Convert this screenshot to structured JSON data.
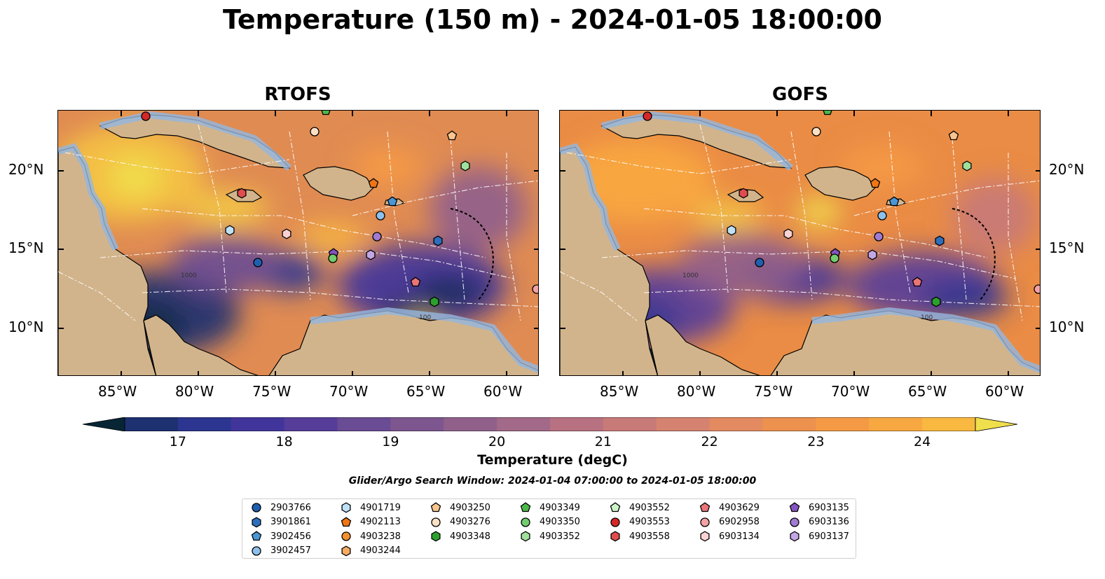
{
  "title": "Temperature (150 m) - 2024-01-05 18:00:00",
  "panels": [
    {
      "title": "RTOFS",
      "colors": "rtofs"
    },
    {
      "title": "GOFS",
      "colors": "gofs"
    }
  ],
  "axes": {
    "lon_ticks": [
      "85°W",
      "80°W",
      "75°W",
      "70°W",
      "65°W",
      "60°W"
    ],
    "lat_ticks": [
      "20°N",
      "15°N",
      "10°N"
    ]
  },
  "colorbar": {
    "label": "Temperature (degC)",
    "ticks": [
      "17",
      "18",
      "19",
      "20",
      "21",
      "22",
      "23",
      "24"
    ],
    "min": 16.5,
    "max": 24.5,
    "colors": [
      "#072535",
      "#0f2b55",
      "#1d3070",
      "#2c3690",
      "#41359c",
      "#563d9a",
      "#6a4c94",
      "#7d568f",
      "#90608b",
      "#a26a88",
      "#b87180",
      "#c77a78",
      "#d58370",
      "#e48a60",
      "#ed914e",
      "#f59a44",
      "#f8a840",
      "#f9b83f",
      "#f4cc44",
      "#f0df4c"
    ]
  },
  "search_window": "Glider/Argo Search Window: 2024-01-04 07:00:00 to 2024-01-05 18:00:00",
  "legend": {
    "columns": [
      [
        {
          "id": "2903766",
          "shape": "circle",
          "color": "#1f5fb0"
        },
        {
          "id": "3901861",
          "shape": "hexagon",
          "color": "#2c6fbd"
        },
        {
          "id": "3902456",
          "shape": "pentagon",
          "color": "#4a96d6"
        },
        {
          "id": "3902457",
          "shape": "circle",
          "color": "#8ec0ec"
        }
      ],
      [
        {
          "id": "4901719",
          "shape": "hexagon",
          "color": "#bfe1f7"
        },
        {
          "id": "4902113",
          "shape": "pentagon",
          "color": "#f07614"
        },
        {
          "id": "4903238",
          "shape": "circle",
          "color": "#f39030"
        },
        {
          "id": "4903244",
          "shape": "hexagon",
          "color": "#f6ab62"
        }
      ],
      [
        {
          "id": "4903250",
          "shape": "pentagon",
          "color": "#f9c48e"
        },
        {
          "id": "4903276",
          "shape": "circle",
          "color": "#fde0c4"
        },
        {
          "id": "4903348",
          "shape": "hexagon",
          "color": "#2ca02c"
        }
      ],
      [
        {
          "id": "4903349",
          "shape": "pentagon",
          "color": "#4cb849"
        },
        {
          "id": "4903350",
          "shape": "circle",
          "color": "#72cd6e"
        },
        {
          "id": "4903352",
          "shape": "hexagon",
          "color": "#9fe09b"
        }
      ],
      [
        {
          "id": "4903552",
          "shape": "pentagon",
          "color": "#ccf5c8"
        },
        {
          "id": "4903553",
          "shape": "circle",
          "color": "#d62728"
        },
        {
          "id": "4903558",
          "shape": "hexagon",
          "color": "#e04d4e"
        }
      ],
      [
        {
          "id": "4903629",
          "shape": "pentagon",
          "color": "#ea7577"
        },
        {
          "id": "6902958",
          "shape": "circle",
          "color": "#f3a3a5"
        },
        {
          "id": "6903134",
          "shape": "hexagon",
          "color": "#fbd2d3"
        }
      ],
      [
        {
          "id": "6903135",
          "shape": "pentagon",
          "color": "#8554c2"
        },
        {
          "id": "6903136",
          "shape": "circle",
          "color": "#a17ad2"
        },
        {
          "id": "6903137",
          "shape": "hexagon",
          "color": "#c3a6e6"
        }
      ]
    ]
  },
  "map_labels": {
    "isobath_1000": "1000",
    "isobath_100": "100"
  }
}
